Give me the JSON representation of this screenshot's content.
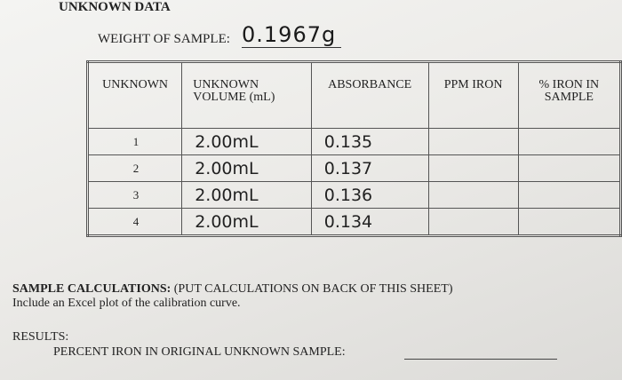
{
  "title": "UNKNOWN DATA",
  "weight": {
    "label": "WEIGHT OF SAMPLE:",
    "value": "0.1967g"
  },
  "table": {
    "headers": [
      "UNKNOWN",
      "UNKNOWN VOLUME (mL)",
      "ABSORBANCE",
      "PPM IRON",
      "% IRON IN SAMPLE"
    ],
    "rows": [
      {
        "unknown": "1",
        "volume": "2.00mL",
        "absorbance": "0.135"
      },
      {
        "unknown": "2",
        "volume": "2.00mL",
        "absorbance": "0.137"
      },
      {
        "unknown": "3",
        "volume": "2.00mL",
        "absorbance": "0.136"
      },
      {
        "unknown": "4",
        "volume": "2.00mL",
        "absorbance": "0.134"
      }
    ]
  },
  "sample_calculations": {
    "heading": "SAMPLE CALCULATIONS:",
    "note": "(PUT CALCULATIONS ON BACK OF THIS SHEET)",
    "instruction": "Include an Excel plot of the calibration curve."
  },
  "results": {
    "heading": "RESULTS:",
    "prompt": "PERCENT IRON IN ORIGINAL UNKNOWN SAMPLE:"
  }
}
